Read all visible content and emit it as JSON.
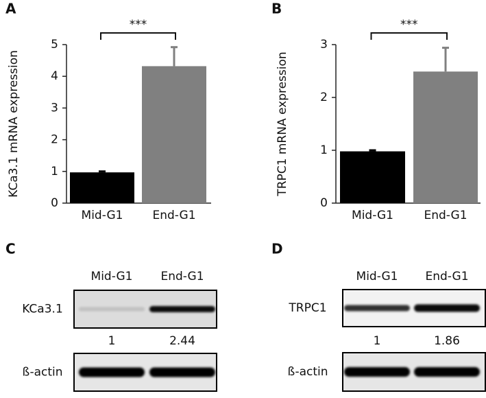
{
  "chart_data": [
    {
      "type": "bar",
      "panel": "A",
      "ylabel": "KCa3.1 mRNA expression",
      "categories": [
        "Mid-G1",
        "End-G1"
      ],
      "series": [
        {
          "values": [
            0.97,
            4.32
          ],
          "errors": [
            0.03,
            0.6
          ],
          "colors": [
            "#000000",
            "#808080"
          ]
        }
      ],
      "ylim": [
        0,
        5
      ],
      "yticks": [
        0,
        1,
        2,
        3,
        4,
        5
      ],
      "significance": "***"
    },
    {
      "type": "bar",
      "panel": "B",
      "ylabel": "TRPC1 mRNA expression",
      "categories": [
        "Mid-G1",
        "End-G1"
      ],
      "series": [
        {
          "values": [
            0.98,
            2.49
          ],
          "errors": [
            0.02,
            0.45
          ],
          "colors": [
            "#000000",
            "#808080"
          ]
        }
      ],
      "ylim": [
        0,
        3
      ],
      "yticks": [
        0,
        1,
        2,
        3
      ],
      "significance": "***"
    }
  ],
  "blots": [
    {
      "panel": "C",
      "lanes": [
        "Mid-G1",
        "End-G1"
      ],
      "target": "KCa3.1",
      "loading": "ß-actin",
      "ratios": [
        1,
        2.44
      ]
    },
    {
      "panel": "D",
      "lanes": [
        "Mid-G1",
        "End-G1"
      ],
      "target": "TRPC1",
      "loading": "ß-actin",
      "ratios": [
        1,
        1.86
      ]
    }
  ]
}
